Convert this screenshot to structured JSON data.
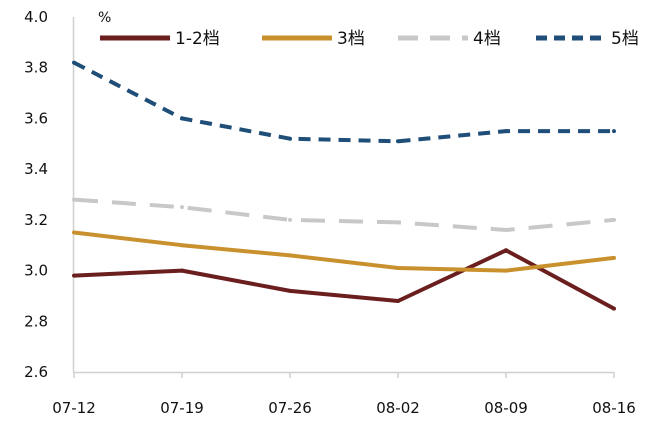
{
  "chart_data": {
    "type": "line",
    "unit": "%",
    "x": [
      "07-12",
      "07-19",
      "07-26",
      "08-02",
      "08-09",
      "08-16"
    ],
    "ylim": [
      2.6,
      4.0
    ],
    "yticks": [
      "2.6",
      "2.8",
      "3.0",
      "3.2",
      "3.4",
      "3.6",
      "3.8",
      "4.0"
    ],
    "grid": false,
    "legend_position": "top",
    "series": [
      {
        "name": "1-2档",
        "color": "#6B1E1E",
        "dash": "solid",
        "values": [
          2.98,
          3.0,
          2.92,
          2.88,
          3.08,
          2.85
        ]
      },
      {
        "name": "3档",
        "color": "#C9902E",
        "dash": "solid",
        "values": [
          3.15,
          3.1,
          3.06,
          3.01,
          3.0,
          3.05
        ]
      },
      {
        "name": "4档",
        "color": "#C8C8C8",
        "dash": "long",
        "values": [
          3.28,
          3.25,
          3.2,
          3.19,
          3.16,
          3.2
        ]
      },
      {
        "name": "5档",
        "color": "#1F4E79",
        "dash": "short",
        "values": [
          3.82,
          3.6,
          3.52,
          3.51,
          3.55,
          3.55
        ]
      }
    ]
  }
}
